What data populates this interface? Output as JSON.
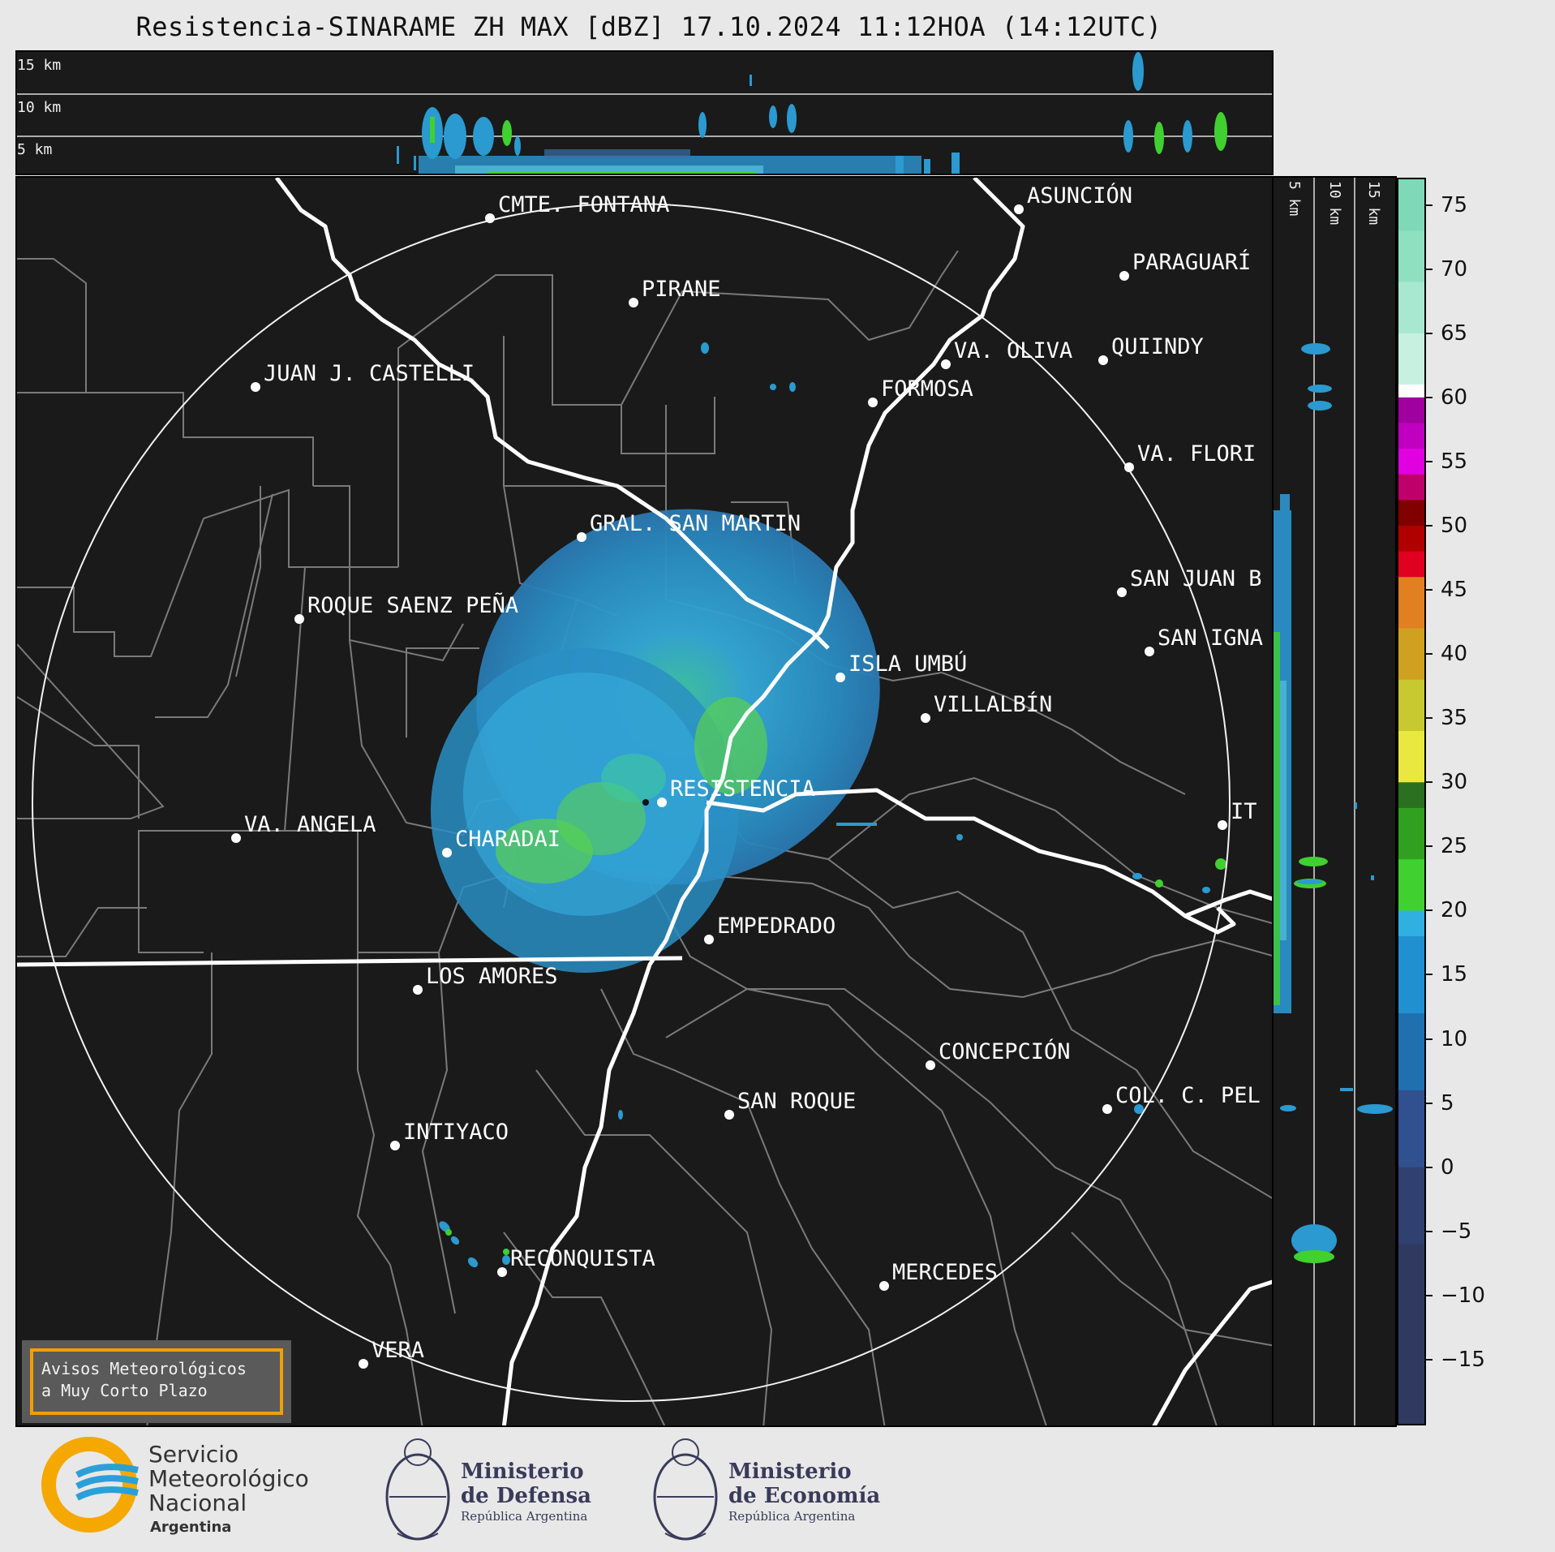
{
  "title": "Resistencia-SINARAME ZH MAX [dBZ] 17.10.2024 11:12HOA (14:12UTC)",
  "top_profile": {
    "height_labels": [
      "15 km",
      "10 km",
      "5 km"
    ]
  },
  "side_profile": {
    "height_labels": [
      "5 km",
      "10 km",
      "15 km"
    ]
  },
  "map": {
    "cities": [
      {
        "name": "CMTE. FONTANA"
      },
      {
        "name": "ASUNCIÓN"
      },
      {
        "name": "PIRANE"
      },
      {
        "name": "PARAGUARÍ"
      },
      {
        "name": "JUAN J. CASTELLI"
      },
      {
        "name": "VA. OLIVA"
      },
      {
        "name": "QUIINDY"
      },
      {
        "name": "FORMOSA"
      },
      {
        "name": "VA. FLORI"
      },
      {
        "name": "GRAL. SAN MARTIN"
      },
      {
        "name": "SAN JUAN B"
      },
      {
        "name": "ROQUE SAENZ PEÑA"
      },
      {
        "name": "SAN IGNA"
      },
      {
        "name": "ISLA UMBÚ"
      },
      {
        "name": "VILLALBÍN"
      },
      {
        "name": "RESISTENCIA"
      },
      {
        "name": "VA. ANGELA"
      },
      {
        "name": "CHARADAI"
      },
      {
        "name": "IT"
      },
      {
        "name": "EMPEDRADO"
      },
      {
        "name": "LOS AMORES"
      },
      {
        "name": "CONCEPCIÓN"
      },
      {
        "name": "SAN ROQUE"
      },
      {
        "name": "COL. C. PEL"
      },
      {
        "name": "INTIYACO"
      },
      {
        "name": "RECONQUISTA"
      },
      {
        "name": "MERCEDES"
      },
      {
        "name": "VERA"
      }
    ]
  },
  "colorbar": {
    "unit": "dBZ",
    "ticks": [
      "75",
      "70",
      "65",
      "60",
      "55",
      "50",
      "45",
      "40",
      "35",
      "30",
      "25",
      "20",
      "15",
      "10",
      "5",
      "0",
      "−5",
      "−10",
      "−15"
    ],
    "colors": [
      "#7fd8b8",
      "#8fe0c0",
      "#a8e8d0",
      "#c8f0e0",
      "#ffffff",
      "#a000a0",
      "#c000c0",
      "#e000e0",
      "#c0006a",
      "#800000",
      "#b00000",
      "#e00020",
      "#e08020",
      "#d0a020",
      "#c8c830",
      "#e8e840",
      "#2a7020",
      "#30a020",
      "#40d030",
      "#30b0e0",
      "#2090d0",
      "#2070b0",
      "#305090",
      "#304070",
      "#303a60"
    ]
  },
  "warning": {
    "line1": "Avisos Meteorológicos",
    "line2": "a Muy Corto Plazo"
  },
  "logos": {
    "smn": {
      "line1": "Servicio",
      "line2": "Meteorológico",
      "line3": "Nacional",
      "line4": "Argentina"
    },
    "defensa": {
      "line1": "Ministerio",
      "line2": "de Defensa",
      "line3": "República Argentina"
    },
    "economia": {
      "line1": "Ministerio",
      "line2": "de Economía",
      "line3": "República Argentina"
    }
  }
}
